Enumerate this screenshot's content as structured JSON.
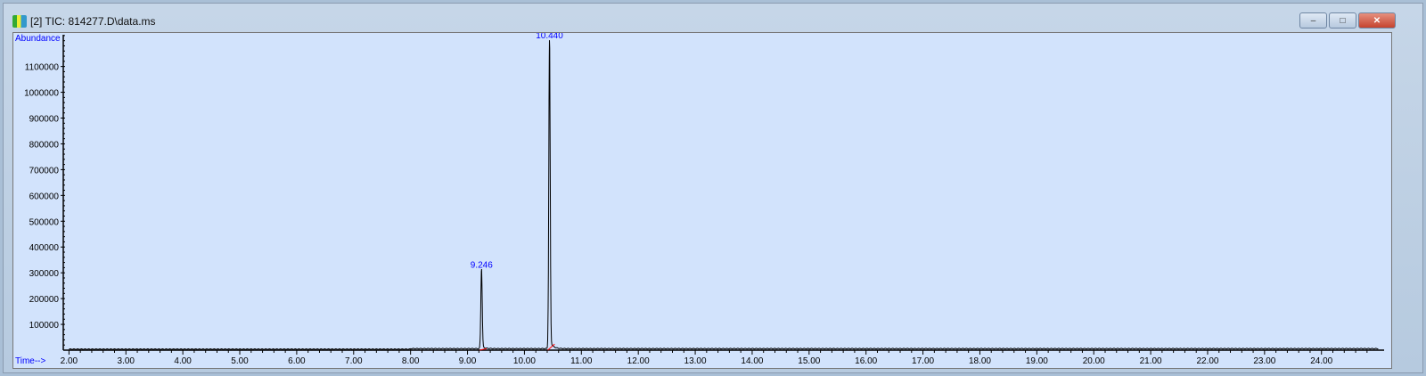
{
  "window": {
    "title": "[2] TIC: 814277.D\\data.ms",
    "buttons": {
      "minimize": "–",
      "maximize": "□",
      "close": "✕"
    }
  },
  "chart_data": {
    "type": "line",
    "ylabel": "Abundance",
    "xlabel": "Time-->",
    "xlim": [
      1.9,
      25.1
    ],
    "ylim": [
      0,
      1230000
    ],
    "x_ticks": [
      "2.00",
      "3.00",
      "4.00",
      "5.00",
      "6.00",
      "7.00",
      "8.00",
      "9.00",
      "10.00",
      "11.00",
      "12.00",
      "13.00",
      "14.00",
      "15.00",
      "16.00",
      "17.00",
      "18.00",
      "19.00",
      "20.00",
      "21.00",
      "22.00",
      "23.00",
      "24.00"
    ],
    "y_ticks": [
      "100000",
      "200000",
      "300000",
      "400000",
      "500000",
      "600000",
      "700000",
      "800000",
      "900000",
      "1000000",
      "1100000"
    ],
    "peaks": [
      {
        "label": "9.246",
        "rt": 9.246,
        "abundance": 305000
      },
      {
        "label": "10.440",
        "rt": 10.44,
        "abundance": 1195000
      }
    ],
    "baseline": 4000,
    "colors": {
      "trace": "#000000",
      "label": "#0000ff",
      "integration": "#ff0000",
      "background": "#d2e3fc"
    }
  }
}
